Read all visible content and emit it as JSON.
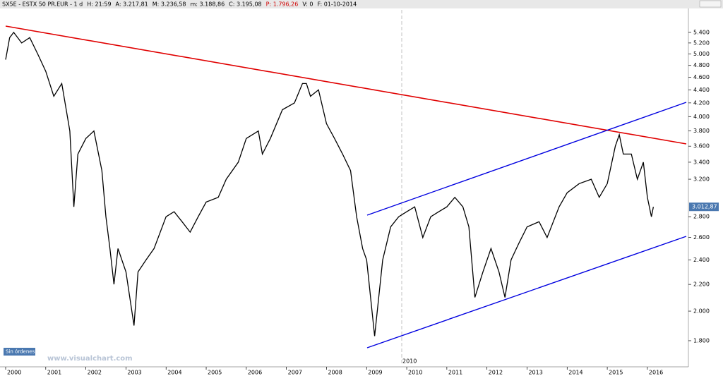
{
  "chart_data": {
    "type": "line",
    "title": "SX5E - ESTX 50 PR.EUR - 1 d",
    "header_items": [
      "H: 21:59",
      "A: 3.217,81",
      "M: 3.236,58",
      "m: 3.188,86",
      "C: 3.195,08",
      "P: 1.796,26",
      "V: 0",
      "F: 01-10-2014"
    ],
    "header_colors": [
      "#000",
      "#000",
      "#000",
      "#000",
      "#000",
      "#d00000",
      "#000",
      "#000"
    ],
    "last_price_label": "3.012,87",
    "button": "Sin órdenes",
    "watermark": "www.visualchart.com",
    "annotation": "2010",
    "color": "#000000",
    "log_scale": true,
    "x": [
      2000.0,
      2000.1,
      2000.2,
      2000.4,
      2000.6,
      2000.8,
      2001.0,
      2001.2,
      2001.4,
      2001.6,
      2001.7,
      2001.8,
      2002.0,
      2002.2,
      2002.4,
      2002.5,
      2002.6,
      2002.7,
      2002.8,
      2003.0,
      2003.2,
      2003.3,
      2003.5,
      2003.7,
      2004.0,
      2004.2,
      2004.4,
      2004.6,
      2004.8,
      2005.0,
      2005.3,
      2005.5,
      2005.8,
      2006.0,
      2006.3,
      2006.4,
      2006.6,
      2006.9,
      2007.2,
      2007.4,
      2007.5,
      2007.6,
      2007.8,
      2008.0,
      2008.2,
      2008.4,
      2008.6,
      2008.75,
      2008.9,
      2009.0,
      2009.2,
      2009.4,
      2009.6,
      2009.8,
      2010.0,
      2010.2,
      2010.4,
      2010.6,
      2010.8,
      2011.0,
      2011.2,
      2011.4,
      2011.55,
      2011.7,
      2011.9,
      2012.1,
      2012.3,
      2012.45,
      2012.6,
      2012.8,
      2013.0,
      2013.3,
      2013.5,
      2013.8,
      2014.0,
      2014.3,
      2014.6,
      2014.8,
      2015.0,
      2015.2,
      2015.3,
      2015.4,
      2015.6,
      2015.75,
      2015.9,
      2016.0,
      2016.1,
      2016.15
    ],
    "values": [
      4900,
      5300,
      5400,
      5200,
      5300,
      5000,
      4700,
      4300,
      4500,
      3800,
      2900,
      3500,
      3700,
      3800,
      3300,
      2800,
      2500,
      2200,
      2500,
      2300,
      1900,
      2300,
      2400,
      2500,
      2800,
      2850,
      2750,
      2650,
      2800,
      2950,
      3000,
      3200,
      3400,
      3700,
      3800,
      3500,
      3700,
      4100,
      4200,
      4500,
      4500,
      4300,
      4400,
      3900,
      3700,
      3500,
      3300,
      2800,
      2500,
      2400,
      1830,
      2400,
      2700,
      2800,
      2850,
      2900,
      2600,
      2800,
      2850,
      2900,
      3000,
      2900,
      2700,
      2100,
      2300,
      2500,
      2300,
      2100,
      2400,
      2550,
      2700,
      2750,
      2600,
      2900,
      3050,
      3150,
      3200,
      3000,
      3150,
      3600,
      3750,
      3500,
      3500,
      3200,
      3400,
      3000,
      2800,
      2900
    ],
    "xlim": [
      2000,
      2016.97
    ],
    "xticks": [
      2000,
      2001,
      2002,
      2003,
      2004,
      2005,
      2006,
      2007,
      2008,
      2009,
      2010,
      2011,
      2012,
      2013,
      2014,
      2015,
      2016
    ],
    "ylim": [
      1640,
      5880
    ],
    "yticks": [
      {
        "value": 1800,
        "label": "1.800"
      },
      {
        "value": 2000,
        "label": "2.000"
      },
      {
        "value": 2200,
        "label": "2.200"
      },
      {
        "value": 2400,
        "label": "2.400"
      },
      {
        "value": 2600,
        "label": "2.600"
      },
      {
        "value": 2800,
        "label": "2.800"
      },
      {
        "value": 3200,
        "label": "3.200"
      },
      {
        "value": 3400,
        "label": "3.400"
      },
      {
        "value": 3600,
        "label": "3.600"
      },
      {
        "value": 3800,
        "label": "3.800"
      },
      {
        "value": 4000,
        "label": "4.000"
      },
      {
        "value": 4200,
        "label": "4.200"
      },
      {
        "value": 4400,
        "label": "4.400"
      },
      {
        "value": 4600,
        "label": "4.600"
      },
      {
        "value": 4800,
        "label": "4.800"
      },
      {
        "value": 5000,
        "label": "5.000"
      },
      {
        "value": 5200,
        "label": "5.200"
      },
      {
        "value": 5400,
        "label": "5.400"
      }
    ]
  }
}
